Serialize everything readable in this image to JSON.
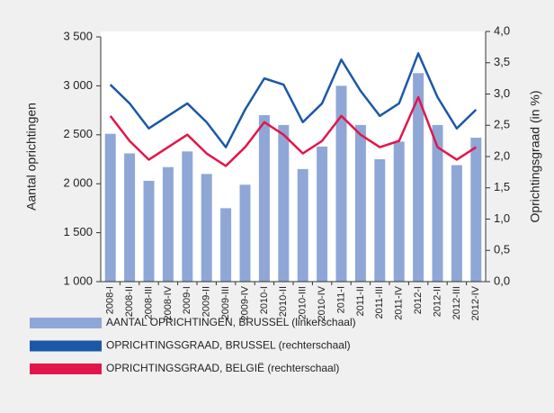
{
  "chart_data": {
    "type": "bar",
    "y_label": "Aantal oprichtingen",
    "y2_label": "Oprichtingsgraad (in %)",
    "categories": [
      "2008-I",
      "2008-II",
      "2008-III",
      "2008-IV",
      "2009-I",
      "2009-II",
      "2009-III",
      "2009-IV",
      "2010-I",
      "2010-II",
      "2010-III",
      "2010-IV",
      "2011-I",
      "2011-II",
      "2011-III",
      "2011-IV",
      "2012-I",
      "2012-II",
      "2012-III",
      "2012-IV"
    ],
    "series": [
      {
        "name": "AANTAL OPRICHTINGEN, BRUSSEL (linkerschaal)",
        "type": "bar",
        "axis": "y",
        "color": "#8fa7d6",
        "values": [
          2510,
          2310,
          2030,
          2170,
          2330,
          2100,
          1750,
          1990,
          2700,
          2600,
          2150,
          2380,
          3000,
          2600,
          2250,
          2430,
          3130,
          2600,
          2190,
          2470
        ]
      },
      {
        "name": "OPRICHTINGSGRAAD, BRUSSEL (rechterschaal)",
        "type": "line",
        "axis": "y2",
        "color": "#1c58a6",
        "values": [
          3.15,
          2.85,
          2.45,
          2.65,
          2.85,
          2.55,
          2.15,
          2.75,
          3.25,
          3.15,
          2.55,
          2.85,
          3.55,
          3.05,
          2.65,
          2.85,
          3.65,
          2.95,
          2.45,
          2.75
        ]
      },
      {
        "name": "OPRICHTINGSGRAAD, BELGIË (rechterschaal)",
        "type": "line",
        "axis": "y2",
        "color": "#e2164b",
        "values": [
          2.65,
          2.25,
          1.95,
          2.15,
          2.35,
          2.05,
          1.85,
          2.15,
          2.55,
          2.35,
          2.05,
          2.25,
          2.65,
          2.35,
          2.15,
          2.25,
          2.95,
          2.15,
          1.95,
          2.15
        ]
      }
    ],
    "ylim": [
      1000,
      3500
    ],
    "yticks": [
      {
        "value": 1000,
        "label": "1 000"
      },
      {
        "value": 1500,
        "label": "1 500"
      },
      {
        "value": 2000,
        "label": "2 000"
      },
      {
        "value": 2500,
        "label": "2 500"
      },
      {
        "value": 3000,
        "label": "3 000"
      },
      {
        "value": 3500,
        "label": "3 500"
      }
    ],
    "y2lim": [
      0,
      4
    ],
    "y2ticks": [
      {
        "value": 0,
        "label": "0,0"
      },
      {
        "value": 0.5,
        "label": "0,5"
      },
      {
        "value": 1,
        "label": "1,0"
      },
      {
        "value": 1.5,
        "label": "1,5"
      },
      {
        "value": 2,
        "label": "2,0"
      },
      {
        "value": 2.5,
        "label": "2,5"
      },
      {
        "value": 3,
        "label": "3,0"
      },
      {
        "value": 3.5,
        "label": "3,5"
      },
      {
        "value": 4,
        "label": "4,0"
      }
    ]
  }
}
